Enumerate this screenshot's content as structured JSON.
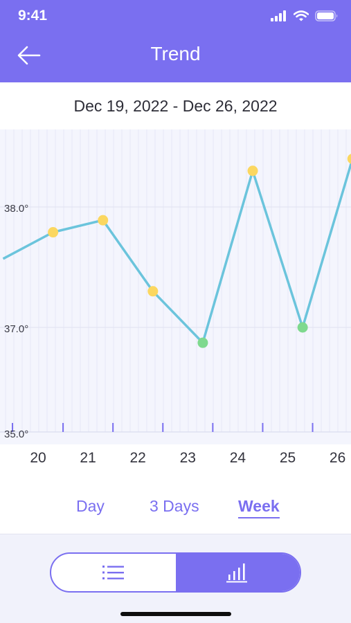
{
  "status_bar": {
    "time": "9:41"
  },
  "header": {
    "title": "Trend"
  },
  "date_range": "Dec 19, 2022 - Dec 26, 2022",
  "range_tabs": [
    {
      "label": "Day",
      "active": false
    },
    {
      "label": "3 Days",
      "active": false
    },
    {
      "label": "Week",
      "active": true
    }
  ],
  "view_toggle": {
    "selected": "chart",
    "options": [
      "list-icon",
      "chart-icon"
    ]
  },
  "colors": {
    "accent": "#7a6ff0",
    "line": "#6bc4dc",
    "fever_point": "#fbd760",
    "normal_point": "#7ed98e"
  },
  "chart_data": {
    "type": "line",
    "y_tick_labels": [
      "35.0°",
      "37.0°",
      "38.0°"
    ],
    "x_tick_labels": [
      "20",
      "21",
      "22",
      "23",
      "24",
      "25",
      "26"
    ],
    "series": [
      {
        "points": [
          {
            "x": 19.3,
            "y": 37.57,
            "marker": "none"
          },
          {
            "x": 20.3,
            "y": 37.79,
            "marker": "fever"
          },
          {
            "x": 21.3,
            "y": 37.89,
            "marker": "fever"
          },
          {
            "x": 22.3,
            "y": 37.3,
            "marker": "fever"
          },
          {
            "x": 23.3,
            "y": 36.73,
            "marker": "normal"
          },
          {
            "x": 24.3,
            "y": 38.3,
            "marker": "fever"
          },
          {
            "x": 25.3,
            "y": 37.0,
            "marker": "normal"
          },
          {
            "x": 26.3,
            "y": 38.4,
            "marker": "fever"
          }
        ]
      }
    ]
  }
}
